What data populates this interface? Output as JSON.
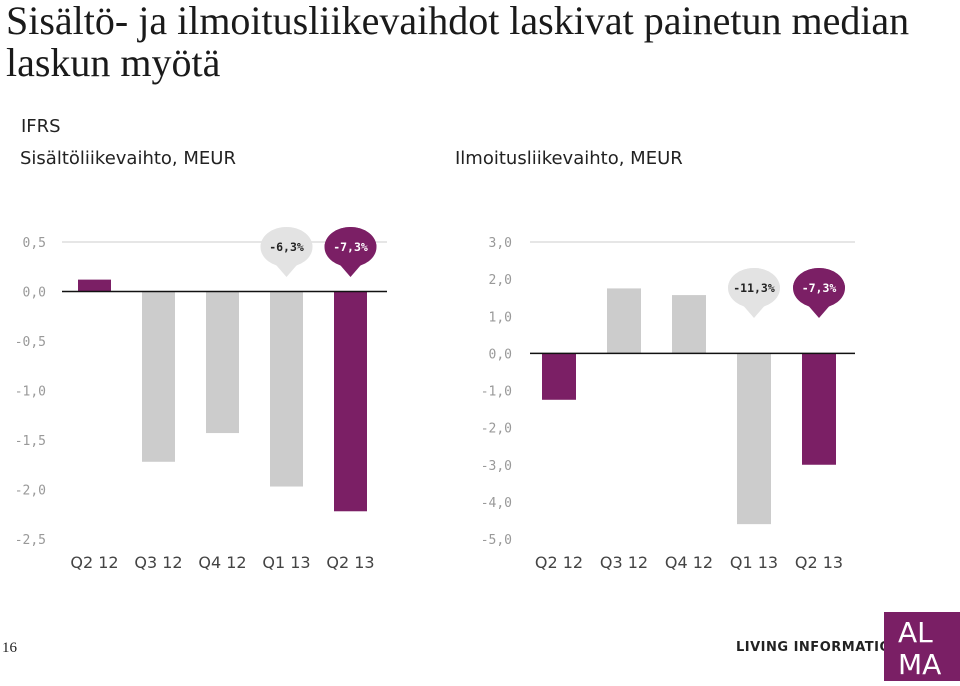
{
  "header": {
    "title": "Sisältö- ja ilmoitusliikevaihdot laskivat painetun median laskun myötä",
    "subtitle": "IFRS"
  },
  "footer": {
    "page_number": "16",
    "tagline": "LIVING INFORMATION",
    "logo_text": "ALMA"
  },
  "colors": {
    "highlight": "#7b1f65",
    "neutral": "#cccccc",
    "tick": "#999999",
    "category": "#444444"
  },
  "chart_data": [
    {
      "type": "bar",
      "title": "Sisältöliikevaihto, MEUR",
      "categories": [
        "Q2 12",
        "Q3 12",
        "Q4 12",
        "Q1 13",
        "Q2 13"
      ],
      "values": [
        0.12,
        -1.72,
        -1.43,
        -1.97,
        -2.22
      ],
      "highlighted": [
        true,
        false,
        false,
        false,
        true
      ],
      "ylim": [
        -2.5,
        0.5
      ],
      "yticks": [
        0.5,
        0.0,
        -0.5,
        -1.0,
        -1.5,
        -2.0,
        -2.5
      ],
      "ytick_labels": [
        "0,5",
        "0,0",
        "-0,5",
        "-1,0",
        "-1,5",
        "-2,0",
        "-2,5"
      ],
      "annotations": [
        {
          "category_index": 3,
          "text": "-6,3%",
          "highlighted": false
        },
        {
          "category_index": 4,
          "text": "-7,3%",
          "highlighted": true
        }
      ],
      "grid": false
    },
    {
      "type": "bar",
      "title": "Ilmoitusliikevaihto, MEUR",
      "categories": [
        "Q2 12",
        "Q3 12",
        "Q4 12",
        "Q1 13",
        "Q2 13"
      ],
      "values": [
        -1.25,
        1.75,
        1.57,
        -4.6,
        -3.0
      ],
      "highlighted": [
        true,
        false,
        false,
        false,
        true
      ],
      "ylim": [
        -5.0,
        3.0
      ],
      "yticks": [
        3.0,
        2.0,
        1.0,
        0.0,
        -1.0,
        -2.0,
        -3.0,
        -4.0,
        -5.0
      ],
      "ytick_labels": [
        "3,0",
        "2,0",
        "1,0",
        "0,0",
        "-1,0",
        "-2,0",
        "-3,0",
        "-4,0",
        "-5,0"
      ],
      "annotations": [
        {
          "category_index": 3,
          "text": "-11,3%",
          "highlighted": false
        },
        {
          "category_index": 4,
          "text": "-7,3%",
          "highlighted": true
        }
      ],
      "grid": false
    }
  ]
}
